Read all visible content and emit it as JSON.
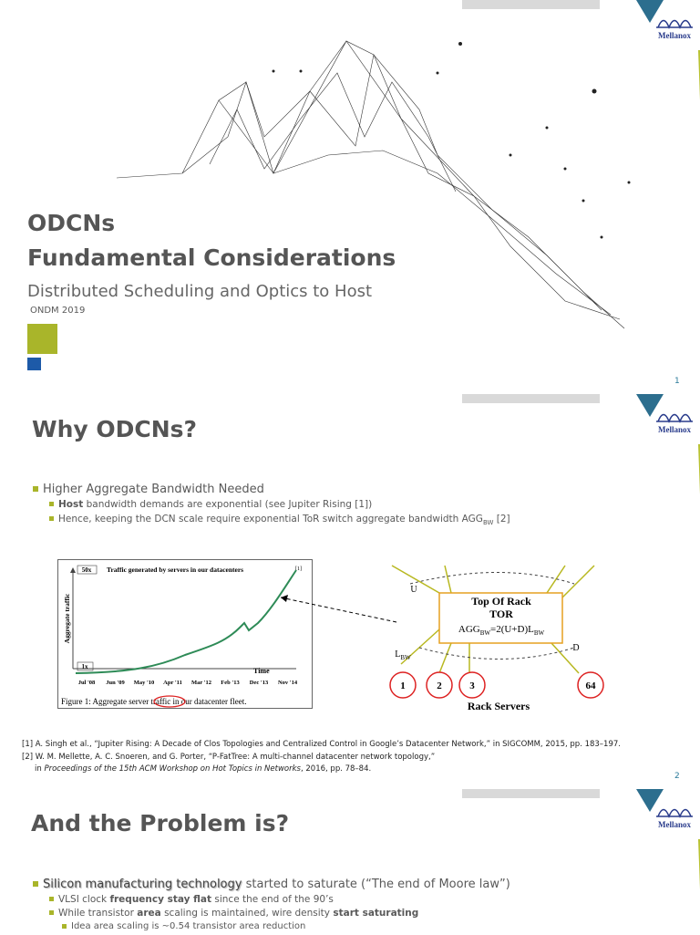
{
  "slides": [
    {
      "title": "ODCNs",
      "subtitle": "Fundamental Considerations",
      "tagline": "Distributed Scheduling and Optics to Host",
      "event": "ONDM 2019",
      "page": "1",
      "logo": "Mellanox"
    },
    {
      "title": "Why ODCNs?",
      "bullet": "Higher Aggregate Bandwidth Needed",
      "sub_bullets": [
        [
          "Host",
          " bandwidth demands are exponential (see Jupiter Rising [1])"
        ],
        [
          "Hence, keeping the DCN scale require exponential ToR switch aggregate bandwidth AGG",
          "BW",
          " [2]"
        ]
      ],
      "figure": {
        "scale_top": "50x",
        "title": "Traffic generated by servers in our datacenters",
        "ref": "[1]",
        "ylabel": "Aggregate traffic",
        "scale_bottom": "1x",
        "xlabel": "Time",
        "xlabels": [
          "Jul '08",
          "Jun '09",
          "May '10",
          "Apr '11",
          "Mar '12",
          "Feb '13",
          "Dec '13",
          "Nov '14"
        ],
        "caption": "Figure 1: Aggregate server traffic in our datacenter fleet."
      },
      "diagram": {
        "up": "U",
        "down": "D",
        "box_title": "Top Of Rack",
        "box_subtitle": "TOR",
        "formula": [
          "AGG",
          "BW",
          "=2(U+D)L",
          "BW"
        ],
        "link": [
          "L",
          "BW"
        ],
        "servers": [
          "1",
          "2",
          "3",
          "64"
        ],
        "servers_label": "Rack Servers"
      },
      "references": [
        [
          "[1] A. Singh et al., “Jupiter Rising: A Decade of Clos Topologies and Centralized Control in Google’s Datacenter Network,” in SIGCOMM, 2015, pp. 183–197."
        ],
        [
          "[2] W. M. Mellette, A. C. Snoeren, and G. Porter, “P-FatTree: A multi-channel datacenter network topology,”"
        ],
        [
          "in ",
          "Proceedings of the 15th ACM Workshop on Hot Topics in Networks",
          ", 2016, pp. 78–84."
        ]
      ],
      "page": "2",
      "logo": "Mellanox"
    },
    {
      "title": "And the Problem is?",
      "bullet": [
        "Silicon manufacturing technology",
        " started to saturate (“The end of Moore law”)"
      ],
      "sub_bullets": [
        [
          "VLSI clock ",
          "frequency stay flat",
          " since the end of the 90’s"
        ],
        [
          "While transistor ",
          "area",
          " scaling is maintained, wire density ",
          "start saturating"
        ]
      ],
      "sub_sub_bullet": "Idea area scaling is ~0.54 transistor area reduction",
      "logo": "Mellanox"
    }
  ]
}
